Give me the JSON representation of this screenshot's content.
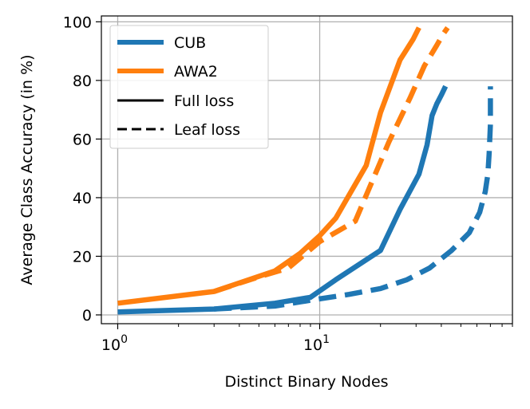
{
  "chart_data": {
    "type": "line",
    "xlabel": "Distinct Binary Nodes",
    "ylabel": "Average Class Accuracy (in %)",
    "xscale": "log",
    "xlim": [
      0.83,
      90
    ],
    "ylim": [
      -3,
      102
    ],
    "grid": true,
    "legend_position": "top-left",
    "x_ticks": [
      {
        "value": 1,
        "base": "10",
        "exp": "0"
      },
      {
        "value": 10,
        "base": "10",
        "exp": "1"
      }
    ],
    "y_ticks": [
      0,
      20,
      40,
      60,
      80,
      100
    ],
    "legend": [
      {
        "label": "CUB",
        "kind": "color",
        "color": "#1f77b4"
      },
      {
        "label": "AWA2",
        "kind": "color",
        "color": "#ff7f0e"
      },
      {
        "label": "Full loss",
        "kind": "style",
        "dash": "solid"
      },
      {
        "label": "Leaf loss",
        "kind": "style",
        "dash": "dashed"
      }
    ],
    "series": [
      {
        "dataset": "AWA2",
        "loss": "Full loss",
        "color": "#ff7f0e",
        "dash": "solid",
        "x": [
          1,
          3,
          6,
          8,
          10,
          12,
          17,
          20,
          25,
          29,
          31
        ],
        "y": [
          4,
          8,
          15,
          21,
          27,
          33,
          51,
          69,
          87,
          94,
          98
        ]
      },
      {
        "dataset": "AWA2",
        "loss": "Leaf loss",
        "color": "#ff7f0e",
        "dash": "dashed",
        "x": [
          3,
          5,
          7,
          10,
          15,
          22,
          28,
          33,
          38,
          41,
          43
        ],
        "y": [
          8,
          13,
          16,
          25,
          32,
          59,
          74,
          85,
          92,
          96,
          98
        ]
      },
      {
        "dataset": "CUB",
        "loss": "Full loss",
        "color": "#1f77b4",
        "dash": "solid",
        "x": [
          1,
          3,
          6,
          9,
          12,
          20,
          25,
          31,
          34,
          36,
          38,
          40,
          42
        ],
        "y": [
          1,
          2,
          4,
          6,
          12,
          22,
          36,
          48,
          58,
          68,
          72,
          75,
          78
        ]
      },
      {
        "dataset": "CUB",
        "loss": "Leaf loss",
        "color": "#1f77b4",
        "dash": "dashed",
        "x": [
          3,
          6,
          9,
          14,
          20,
          27,
          35,
          45,
          55,
          62,
          66,
          68,
          69,
          70,
          70
        ],
        "y": [
          2,
          3,
          5,
          7,
          9,
          12,
          16,
          22,
          28,
          35,
          42,
          48,
          55,
          65,
          78
        ]
      }
    ]
  }
}
